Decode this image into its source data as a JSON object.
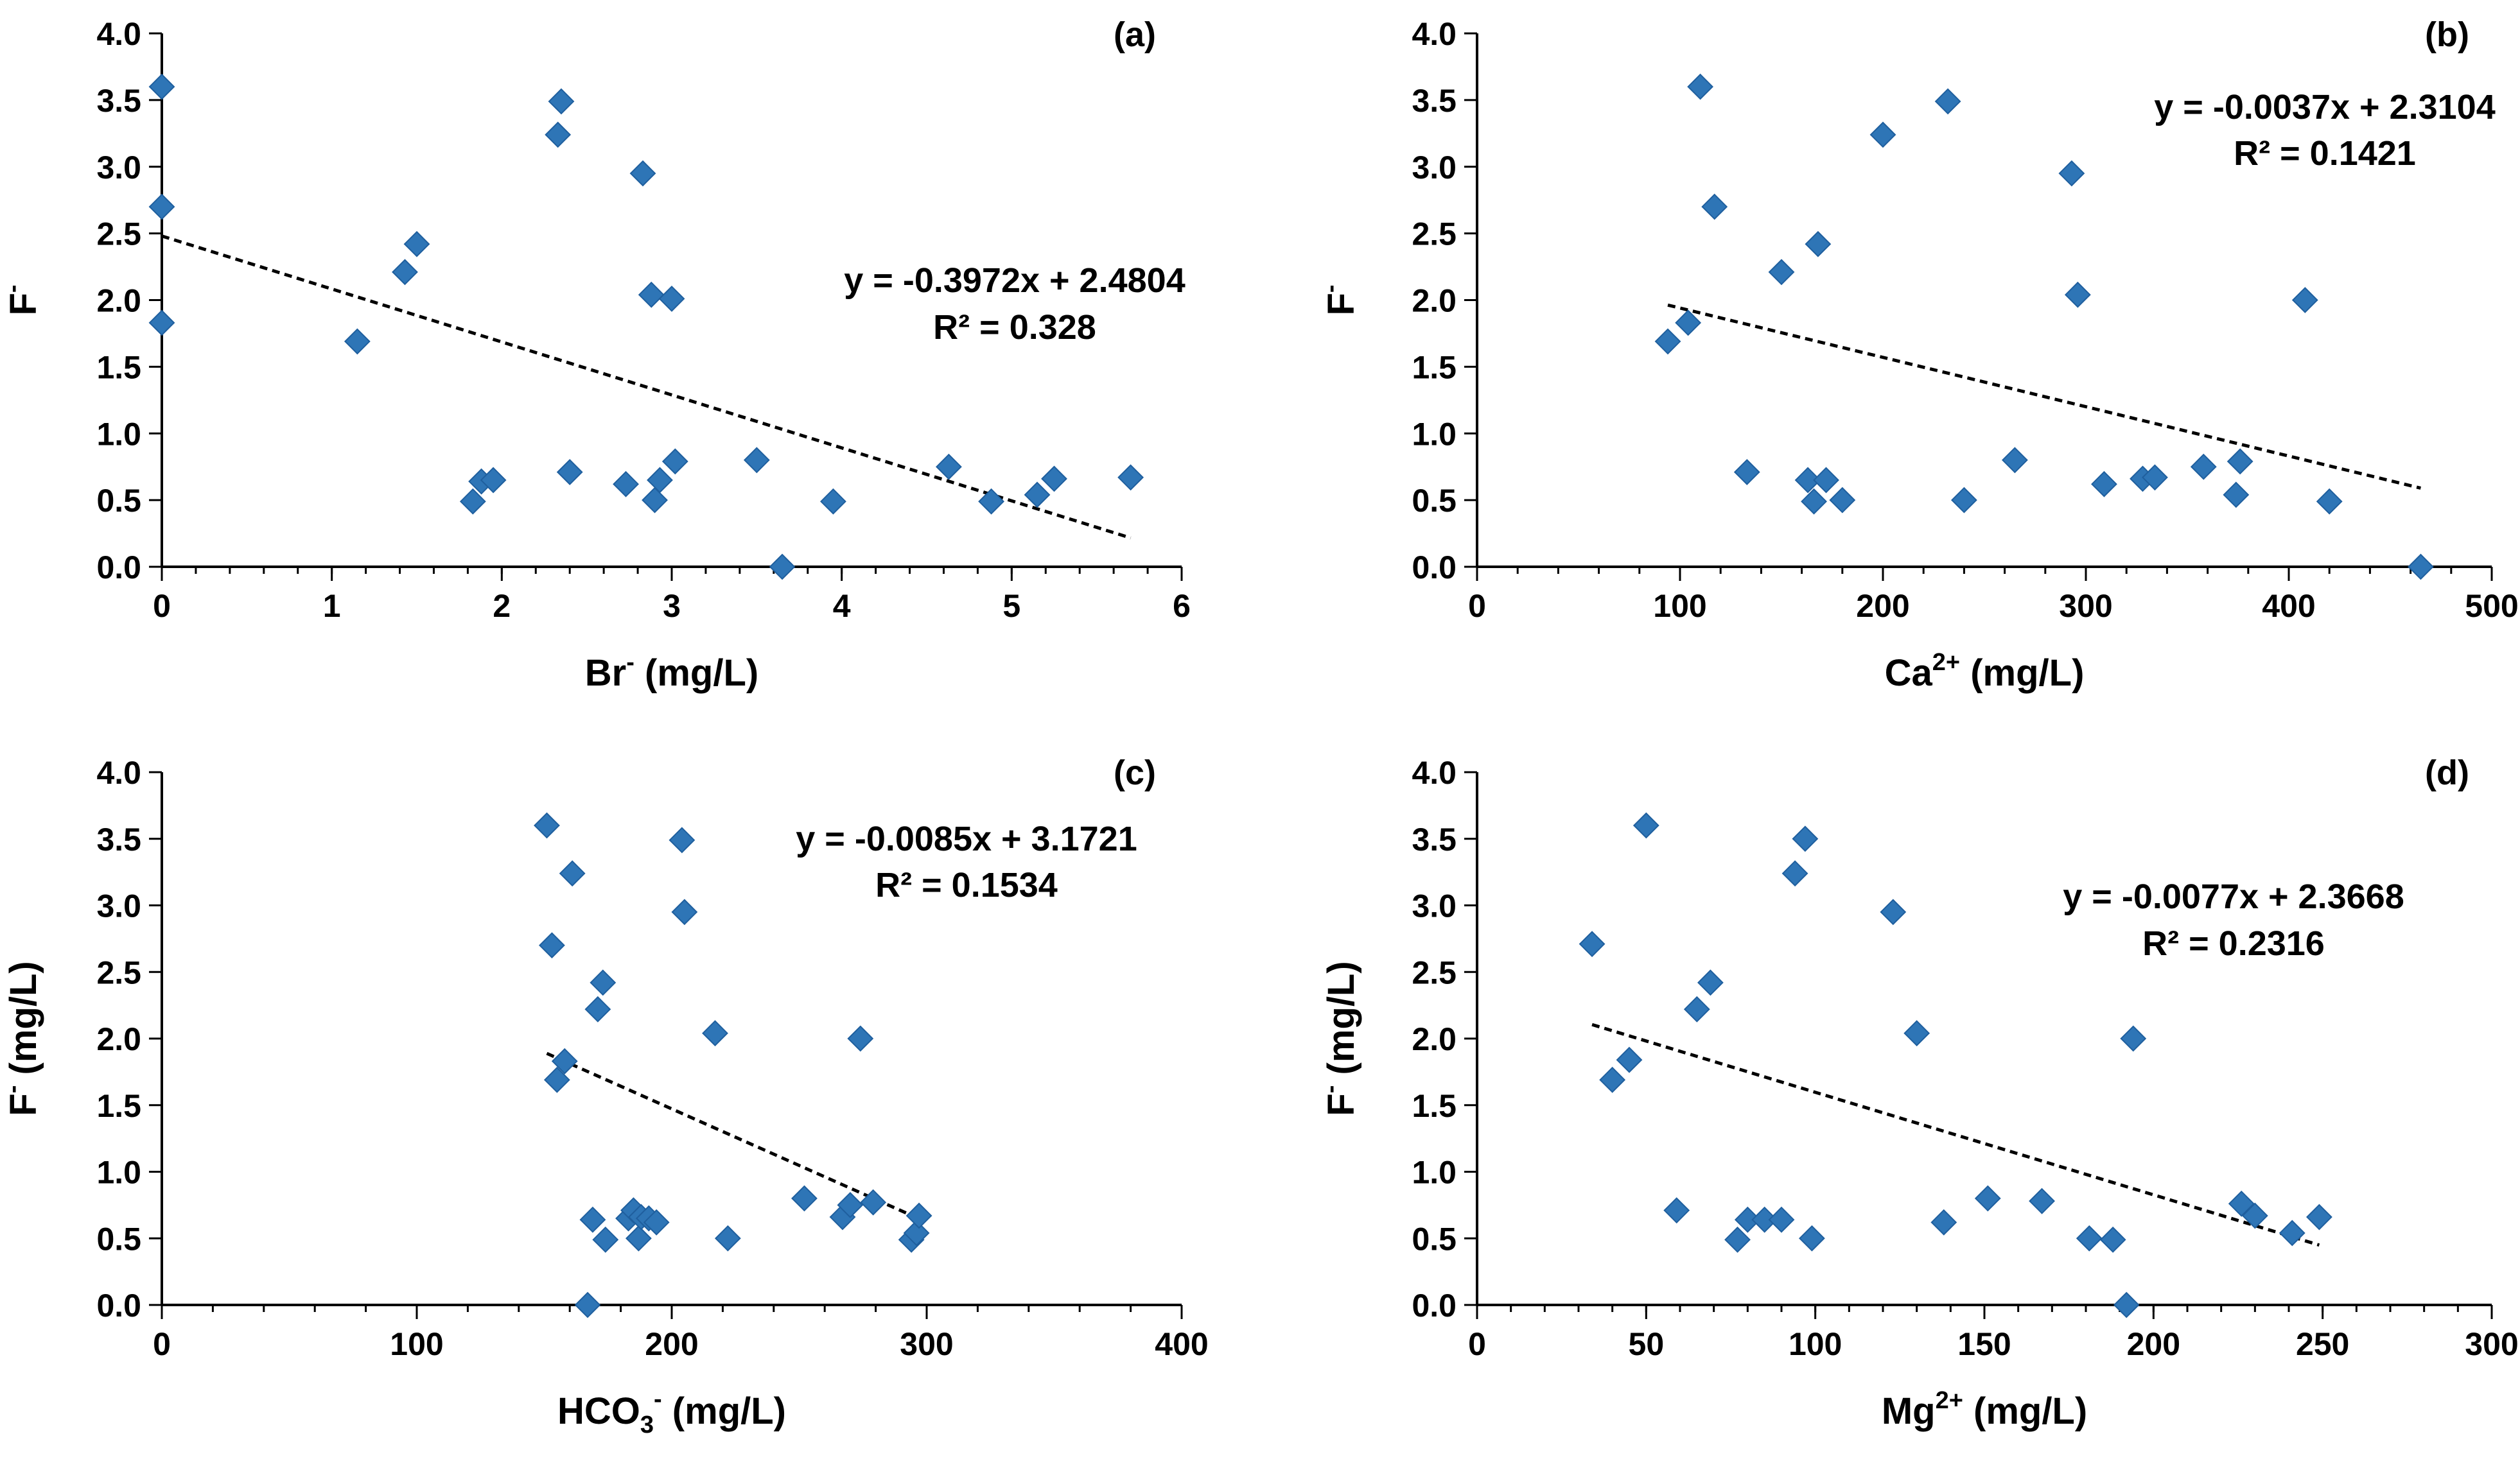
{
  "colors": {
    "marker": "#2e75b6",
    "axis": "#000000",
    "trendline": "#000000"
  },
  "chart_data": [
    {
      "id": "a",
      "type": "scatter",
      "panel_label": "(a)",
      "xlabel": {
        "base": "Br",
        "sup": "-",
        "unit": " (mg/L)"
      },
      "ylabel": {
        "base": "F",
        "sup": "-",
        "unit": ""
      },
      "xlim": [
        0,
        6
      ],
      "ylim": [
        0,
        4
      ],
      "xticks": [
        0,
        1,
        2,
        3,
        4,
        5,
        6
      ],
      "x_tick_labels": [
        "0",
        "1",
        "2",
        "3",
        "4",
        "5",
        "6"
      ],
      "yticks": [
        0,
        0.5,
        1,
        1.5,
        2,
        2.5,
        3,
        3.5,
        4
      ],
      "y_tick_labels": [
        "0.0",
        "0.5",
        "1.0",
        "1.5",
        "2.0",
        "2.5",
        "3.0",
        "3.5",
        "4.0"
      ],
      "x_minor_step": 0.2,
      "points": [
        [
          0,
          3.6
        ],
        [
          0,
          2.7
        ],
        [
          0,
          1.83
        ],
        [
          1.15,
          1.69
        ],
        [
          1.43,
          2.21
        ],
        [
          1.5,
          2.42
        ],
        [
          1.83,
          0.49
        ],
        [
          1.88,
          0.64
        ],
        [
          1.95,
          0.65
        ],
        [
          2.33,
          3.24
        ],
        [
          2.35,
          3.49
        ],
        [
          2.4,
          0.71
        ],
        [
          2.73,
          0.62
        ],
        [
          2.83,
          2.95
        ],
        [
          2.88,
          2.04
        ],
        [
          2.9,
          0.5
        ],
        [
          2.93,
          0.65
        ],
        [
          3.0,
          2.01
        ],
        [
          3.02,
          0.79
        ],
        [
          3.5,
          0.8
        ],
        [
          3.65,
          0.0
        ],
        [
          3.95,
          0.49
        ],
        [
          4.63,
          0.75
        ],
        [
          4.88,
          0.49
        ],
        [
          5.15,
          0.54
        ],
        [
          5.25,
          0.66
        ],
        [
          5.7,
          0.67
        ]
      ],
      "trendline": {
        "slope": -0.3972,
        "intercept": 2.4804,
        "x_range": [
          0,
          5.7
        ]
      },
      "equation": "y = -0.3972x + 2.4804",
      "r2": "R² = 0.328"
    },
    {
      "id": "b",
      "type": "scatter",
      "panel_label": "(b)",
      "xlabel": {
        "base": "Ca",
        "sup": "2+",
        "unit": " (mg/L)"
      },
      "ylabel": {
        "base": "F",
        "sup": "-",
        "unit": ""
      },
      "xlim": [
        0,
        500
      ],
      "ylim": [
        0,
        4
      ],
      "xticks": [
        0,
        100,
        200,
        300,
        400,
        500
      ],
      "x_tick_labels": [
        "0",
        "100",
        "200",
        "300",
        "400",
        "500"
      ],
      "yticks": [
        0,
        0.5,
        1,
        1.5,
        2,
        2.5,
        3,
        3.5,
        4
      ],
      "y_tick_labels": [
        "0.0",
        "0.5",
        "1.0",
        "1.5",
        "2.0",
        "2.5",
        "3.0",
        "3.5",
        "4.0"
      ],
      "x_minor_step": 20,
      "points": [
        [
          94,
          1.69
        ],
        [
          104,
          1.83
        ],
        [
          110,
          3.6
        ],
        [
          117,
          2.7
        ],
        [
          133,
          0.71
        ],
        [
          150,
          2.21
        ],
        [
          163,
          0.65
        ],
        [
          166,
          0.49
        ],
        [
          168,
          2.42
        ],
        [
          172,
          0.65
        ],
        [
          180,
          0.5
        ],
        [
          200,
          3.24
        ],
        [
          232,
          3.49
        ],
        [
          240,
          0.5
        ],
        [
          265,
          0.8
        ],
        [
          293,
          2.95
        ],
        [
          296,
          2.04
        ],
        [
          309,
          0.62
        ],
        [
          328,
          0.66
        ],
        [
          334,
          0.67
        ],
        [
          358,
          0.75
        ],
        [
          374,
          0.54
        ],
        [
          376,
          0.79
        ],
        [
          408,
          2.0
        ],
        [
          420,
          0.49
        ],
        [
          465,
          0.0
        ]
      ],
      "trendline": {
        "slope": -0.0037,
        "intercept": 2.3104,
        "x_range": [
          94,
          465
        ]
      },
      "equation": "y = -0.0037x + 2.3104",
      "r2": "R² = 0.1421"
    },
    {
      "id": "c",
      "type": "scatter",
      "panel_label": "(c)",
      "xlabel": {
        "base": "HCO",
        "sub": "3",
        "sup": "-",
        "unit": " (mg/L)"
      },
      "ylabel": {
        "base": "F",
        "sup": "-",
        "unit": " (mg/L)"
      },
      "xlim": [
        0,
        400
      ],
      "ylim": [
        0,
        4
      ],
      "xticks": [
        0,
        100,
        200,
        300,
        400
      ],
      "x_tick_labels": [
        "0",
        "100",
        "200",
        "300",
        "400"
      ],
      "yticks": [
        0,
        0.5,
        1,
        1.5,
        2,
        2.5,
        3,
        3.5,
        4
      ],
      "y_tick_labels": [
        "0.0",
        "0.5",
        "1.0",
        "1.5",
        "2.0",
        "2.5",
        "3.0",
        "3.5",
        "4.0"
      ],
      "x_minor_step": 20,
      "points": [
        [
          151,
          3.6
        ],
        [
          153,
          2.7
        ],
        [
          155,
          1.69
        ],
        [
          158,
          1.83
        ],
        [
          161,
          3.24
        ],
        [
          167,
          0.0
        ],
        [
          169,
          0.64
        ],
        [
          171,
          2.22
        ],
        [
          173,
          2.42
        ],
        [
          174,
          0.49
        ],
        [
          183,
          0.65
        ],
        [
          185,
          0.71
        ],
        [
          187,
          0.5
        ],
        [
          188,
          0.66
        ],
        [
          191,
          0.65
        ],
        [
          194,
          0.62
        ],
        [
          204,
          3.49
        ],
        [
          205,
          2.95
        ],
        [
          217,
          2.04
        ],
        [
          222,
          0.5
        ],
        [
          252,
          0.8
        ],
        [
          267,
          0.66
        ],
        [
          270,
          0.75
        ],
        [
          274,
          2.0
        ],
        [
          279,
          0.77
        ],
        [
          294,
          0.49
        ],
        [
          296,
          0.54
        ],
        [
          297,
          0.67
        ]
      ],
      "trendline": {
        "slope": -0.0085,
        "intercept": 3.1721,
        "x_range": [
          151,
          297
        ]
      },
      "equation": "y = -0.0085x + 3.1721",
      "r2": "R² = 0.1534"
    },
    {
      "id": "d",
      "type": "scatter",
      "panel_label": "(d)",
      "xlabel": {
        "base": "Mg",
        "sup": "2+",
        "unit": " (mg/L)"
      },
      "ylabel": {
        "base": "F",
        "sup": "-",
        "unit": " (mg/L)"
      },
      "xlim": [
        0,
        300
      ],
      "ylim": [
        0,
        4
      ],
      "xticks": [
        0,
        50,
        100,
        150,
        200,
        250,
        300
      ],
      "x_tick_labels": [
        "0",
        "50",
        "100",
        "150",
        "200",
        "250",
        "300"
      ],
      "yticks": [
        0,
        0.5,
        1,
        1.5,
        2,
        2.5,
        3,
        3.5,
        4
      ],
      "y_tick_labels": [
        "0.0",
        "0.5",
        "1.0",
        "1.5",
        "2.0",
        "2.5",
        "3.0",
        "3.5",
        "4.0"
      ],
      "x_minor_step": 10,
      "points": [
        [
          34,
          2.71
        ],
        [
          40,
          1.69
        ],
        [
          45,
          1.84
        ],
        [
          50,
          3.6
        ],
        [
          59,
          0.71
        ],
        [
          65,
          2.22
        ],
        [
          69,
          2.42
        ],
        [
          77,
          0.49
        ],
        [
          80,
          0.64
        ],
        [
          85,
          0.64
        ],
        [
          90,
          0.64
        ],
        [
          94,
          3.24
        ],
        [
          97,
          3.5
        ],
        [
          99,
          0.5
        ],
        [
          123,
          2.95
        ],
        [
          130,
          2.04
        ],
        [
          138,
          0.62
        ],
        [
          151,
          0.8
        ],
        [
          167,
          0.78
        ],
        [
          181,
          0.5
        ],
        [
          188,
          0.49
        ],
        [
          192,
          0.0
        ],
        [
          194,
          2.0
        ],
        [
          226,
          0.76
        ],
        [
          230,
          0.67
        ],
        [
          241,
          0.54
        ],
        [
          249,
          0.66
        ]
      ],
      "trendline": {
        "slope": -0.0077,
        "intercept": 2.3668,
        "x_range": [
          34,
          249
        ]
      },
      "equation": "y = -0.0077x + 2.3668",
      "r2": "R² = 0.2316"
    }
  ]
}
